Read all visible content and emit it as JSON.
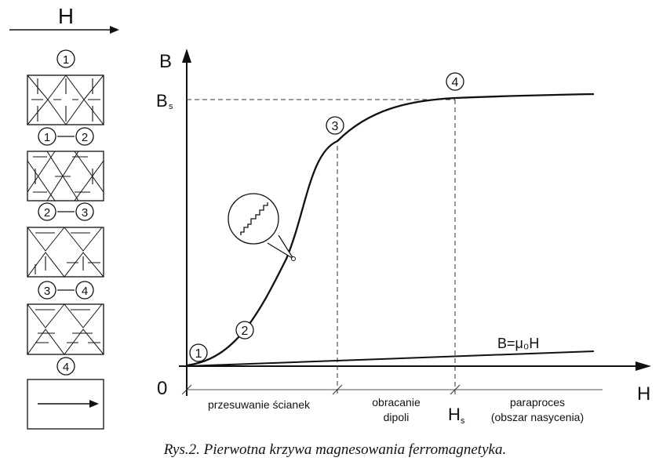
{
  "top_arrow_label": "H",
  "axis": {
    "y_label": "B",
    "x_label": "H",
    "origin": "0",
    "bs_label": "B",
    "bs_sub": "s",
    "hs_label": "H",
    "hs_sub": "s"
  },
  "curve_markers": [
    "1",
    "2",
    "3",
    "4"
  ],
  "line_label": "B=μ₀H",
  "regions": {
    "r1": "przesuwanie ścianek",
    "r2_line1": "obracanie",
    "r2_line2": "dipoli",
    "r3_line1": "paraproces",
    "r3_line2": "(obszar nasycenia)"
  },
  "domain_stages": [
    {
      "a": "1",
      "b": ""
    },
    {
      "a": "1",
      "b": "2"
    },
    {
      "a": "2",
      "b": "3"
    },
    {
      "a": "3",
      "b": "4"
    },
    {
      "a": "4",
      "b": ""
    }
  ],
  "caption": "Rys.2. Pierwotna krzywa magnesowania ferromagnetyka."
}
